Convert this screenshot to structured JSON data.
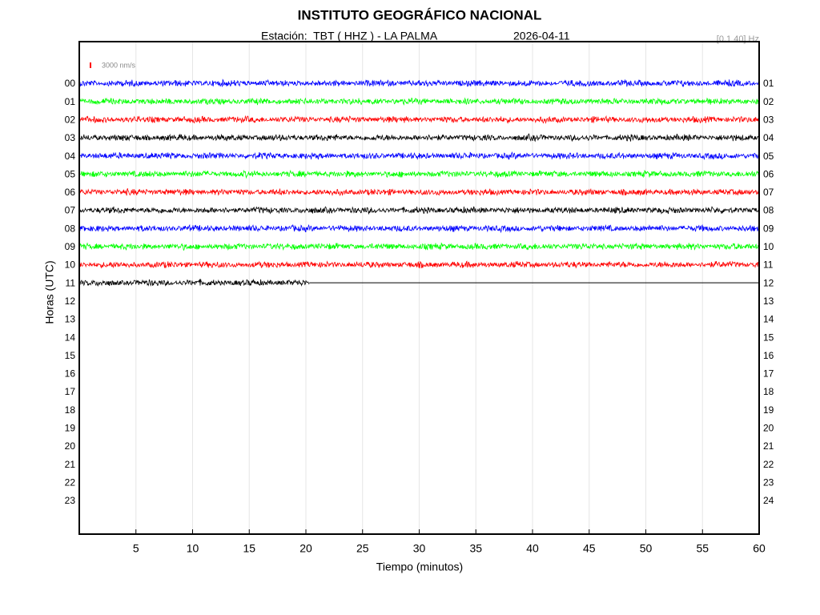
{
  "chart_data": {
    "type": "helicorder",
    "title": "INSTITUTO GEOGRÁFICO NACIONAL",
    "subtitle": "Estación:  TBT ( HHZ ) - LA PALMA",
    "date": "2026-04-11",
    "filter": "[0.1 40] Hz",
    "scale_label": "3000 nm/s",
    "scale_color": "#ff0000",
    "xlabel": "Tiempo (minutos)",
    "ylabel": "Horas (UTC)",
    "xlim": [
      0,
      60
    ],
    "xticks": [
      5,
      10,
      15,
      20,
      25,
      30,
      35,
      40,
      45,
      50,
      55,
      60
    ],
    "grid": true,
    "categories": [
      "00",
      "01",
      "02",
      "03",
      "04",
      "05",
      "06",
      "07",
      "08",
      "09",
      "10",
      "11",
      "12",
      "13",
      "14",
      "15",
      "16",
      "17",
      "18",
      "19",
      "20",
      "21",
      "22",
      "23"
    ],
    "right_categories": [
      "01",
      "02",
      "03",
      "04",
      "05",
      "06",
      "07",
      "08",
      "09",
      "10",
      "11",
      "12",
      "13",
      "14",
      "15",
      "16",
      "17",
      "18",
      "19",
      "20",
      "21",
      "22",
      "23",
      "24"
    ],
    "trace_colors": [
      "#0000ff",
      "#00ff00",
      "#ff0000",
      "#000000",
      "#0000ff",
      "#00ff00",
      "#ff0000",
      "#000000",
      "#0000ff",
      "#00ff00",
      "#ff0000",
      "#000000"
    ],
    "trace_end": [
      60,
      60,
      60,
      60,
      60,
      60,
      60,
      60,
      60,
      60,
      60,
      20.3
    ]
  }
}
